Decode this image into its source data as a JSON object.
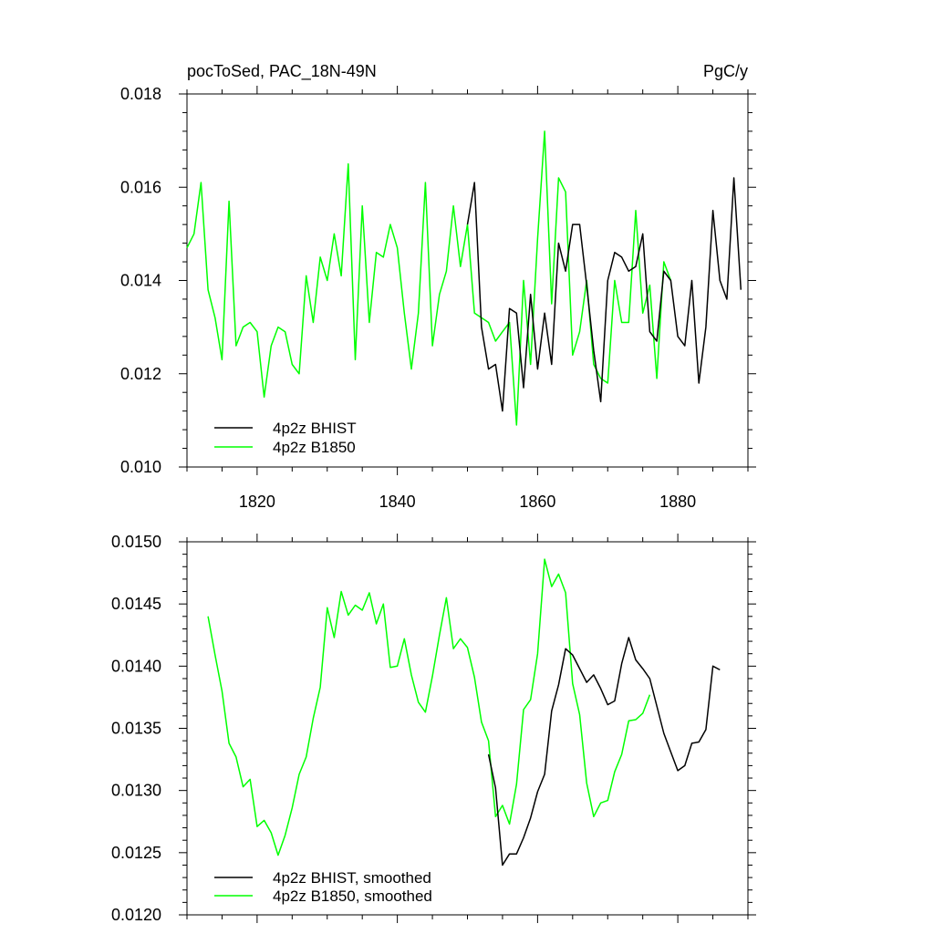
{
  "colors": {
    "bhist": "#000000",
    "b1850": "#00ff00",
    "axis": "#000000",
    "background": "#ffffff"
  },
  "chart_data": [
    {
      "type": "line",
      "title_left": "pocToSed, PAC_18N-49N",
      "title_right": "PgC/y",
      "xlabel": "",
      "ylabel": "",
      "xlim": [
        1810,
        1890
      ],
      "ylim": [
        0.01,
        0.018
      ],
      "x_ticks": [
        1820,
        1840,
        1860,
        1880
      ],
      "x_tick_labels": [
        "1820",
        "1840",
        "1860",
        "1880"
      ],
      "y_ticks": [
        0.01,
        0.012,
        0.014,
        0.016,
        0.018
      ],
      "y_tick_labels": [
        "0.010",
        "0.012",
        "0.014",
        "0.016",
        "0.018"
      ],
      "grid": false,
      "legend_position": "bottom-left",
      "series": [
        {
          "name": "4p2z BHIST",
          "color": "#000000",
          "x": [
            1850,
            1851,
            1852,
            1853,
            1854,
            1855,
            1856,
            1857,
            1858,
            1859,
            1860,
            1861,
            1862,
            1863,
            1864,
            1865,
            1866,
            1867,
            1868,
            1869,
            1870,
            1871,
            1872,
            1873,
            1874,
            1875,
            1876,
            1877,
            1878,
            1879,
            1880,
            1881,
            1882,
            1883,
            1884,
            1885,
            1886,
            1887,
            1888,
            1889
          ],
          "values": [
            0.0152,
            0.0161,
            0.013,
            0.0121,
            0.0122,
            0.0112,
            0.0134,
            0.0133,
            0.0117,
            0.0137,
            0.0121,
            0.0133,
            0.0122,
            0.0148,
            0.0142,
            0.0152,
            0.0152,
            0.0139,
            0.0125,
            0.0114,
            0.014,
            0.0146,
            0.0145,
            0.0142,
            0.0143,
            0.015,
            0.0129,
            0.0127,
            0.0142,
            0.014,
            0.0128,
            0.0126,
            0.014,
            0.0118,
            0.013,
            0.0155,
            0.014,
            0.0136,
            0.0162,
            0.0138
          ]
        },
        {
          "name": "4p2z B1850",
          "color": "#00ff00",
          "x": [
            1810,
            1811,
            1812,
            1813,
            1814,
            1815,
            1816,
            1817,
            1818,
            1819,
            1820,
            1821,
            1822,
            1823,
            1824,
            1825,
            1826,
            1827,
            1828,
            1829,
            1830,
            1831,
            1832,
            1833,
            1834,
            1835,
            1836,
            1837,
            1838,
            1839,
            1840,
            1841,
            1842,
            1843,
            1844,
            1845,
            1846,
            1847,
            1848,
            1849,
            1850,
            1851,
            1852,
            1853,
            1854,
            1855,
            1856,
            1857,
            1858,
            1859,
            1860,
            1861,
            1862,
            1863,
            1864,
            1865,
            1866,
            1867,
            1868,
            1869,
            1870,
            1871,
            1872,
            1873,
            1874,
            1875,
            1876,
            1877,
            1878,
            1879
          ],
          "values": [
            0.0147,
            0.015,
            0.0161,
            0.0138,
            0.0132,
            0.0123,
            0.0157,
            0.0126,
            0.013,
            0.0131,
            0.0129,
            0.0115,
            0.0126,
            0.013,
            0.0129,
            0.0122,
            0.012,
            0.0141,
            0.0131,
            0.0145,
            0.014,
            0.015,
            0.0141,
            0.0165,
            0.0123,
            0.0156,
            0.0131,
            0.0146,
            0.0145,
            0.0152,
            0.0147,
            0.0133,
            0.0121,
            0.0133,
            0.0161,
            0.0126,
            0.0137,
            0.0142,
            0.0156,
            0.0143,
            0.0152,
            0.0133,
            0.0132,
            0.0131,
            0.0127,
            0.0129,
            0.0131,
            0.0109,
            0.014,
            0.0122,
            0.0149,
            0.0172,
            0.0135,
            0.0162,
            0.0159,
            0.0124,
            0.0129,
            0.014,
            0.0122,
            0.0119,
            0.0118,
            0.014,
            0.0131,
            0.0131,
            0.0155,
            0.0133,
            0.0139,
            0.0119,
            0.0144,
            0.014
          ]
        }
      ]
    },
    {
      "type": "line",
      "title_left": "",
      "title_right": "",
      "xlabel": "",
      "ylabel": "",
      "xlim": [
        1810,
        1890
      ],
      "ylim": [
        0.012,
        0.015
      ],
      "x_ticks": [
        1820,
        1840,
        1860,
        1880
      ],
      "x_tick_labels": [],
      "y_ticks": [
        0.012,
        0.0125,
        0.013,
        0.0135,
        0.014,
        0.0145,
        0.015
      ],
      "y_tick_labels": [
        "0.0120",
        "0.0125",
        "0.0130",
        "0.0135",
        "0.0140",
        "0.0145",
        "0.0150"
      ],
      "grid": false,
      "legend_position": "bottom-left",
      "series": [
        {
          "name": "4p2z BHIST, smoothed",
          "color": "#000000",
          "x": [
            1853,
            1854,
            1855,
            1856,
            1857,
            1858,
            1859,
            1860,
            1861,
            1862,
            1863,
            1864,
            1865,
            1866,
            1867,
            1868,
            1869,
            1870,
            1871,
            1872,
            1873,
            1874,
            1875,
            1876,
            1877,
            1878,
            1879,
            1880,
            1881,
            1882,
            1883,
            1884,
            1885,
            1886
          ],
          "values": [
            0.01329,
            0.01302,
            0.0124,
            0.01249,
            0.01249,
            0.01262,
            0.01278,
            0.01299,
            0.01313,
            0.01364,
            0.01385,
            0.01414,
            0.01409,
            0.01398,
            0.01387,
            0.01393,
            0.01382,
            0.01369,
            0.01372,
            0.01402,
            0.01423,
            0.01405,
            0.01398,
            0.0139,
            0.01368,
            0.01346,
            0.01331,
            0.01316,
            0.0132,
            0.01338,
            0.01339,
            0.01349,
            0.014,
            0.01397
          ]
        },
        {
          "name": "4p2z B1850, smoothed",
          "color": "#00ff00",
          "x": [
            1813,
            1814,
            1815,
            1816,
            1817,
            1818,
            1819,
            1820,
            1821,
            1822,
            1823,
            1824,
            1825,
            1826,
            1827,
            1828,
            1829,
            1830,
            1831,
            1832,
            1833,
            1834,
            1835,
            1836,
            1837,
            1838,
            1839,
            1840,
            1841,
            1842,
            1843,
            1844,
            1845,
            1846,
            1847,
            1848,
            1849,
            1850,
            1851,
            1852,
            1853,
            1854,
            1855,
            1856,
            1857,
            1858,
            1859,
            1860,
            1861,
            1862,
            1863,
            1864,
            1865,
            1866,
            1867,
            1868,
            1869,
            1870,
            1871,
            1872,
            1873,
            1874,
            1875,
            1876
          ],
          "values": [
            0.0144,
            0.01409,
            0.0138,
            0.01338,
            0.01327,
            0.01303,
            0.01309,
            0.01271,
            0.01276,
            0.01266,
            0.01248,
            0.01264,
            0.01286,
            0.01313,
            0.01327,
            0.01358,
            0.01383,
            0.01447,
            0.01423,
            0.0146,
            0.01441,
            0.01449,
            0.01445,
            0.01459,
            0.01434,
            0.0145,
            0.01399,
            0.014,
            0.01422,
            0.01393,
            0.01371,
            0.01363,
            0.01392,
            0.01425,
            0.01455,
            0.01414,
            0.01422,
            0.01415,
            0.01391,
            0.01355,
            0.0134,
            0.01279,
            0.01288,
            0.01273,
            0.01305,
            0.01365,
            0.01373,
            0.0141,
            0.01486,
            0.01464,
            0.01474,
            0.01459,
            0.01386,
            0.01361,
            0.01306,
            0.01279,
            0.0129,
            0.01292,
            0.01315,
            0.01329,
            0.01356,
            0.01357,
            0.01362,
            0.01377
          ]
        }
      ]
    }
  ]
}
